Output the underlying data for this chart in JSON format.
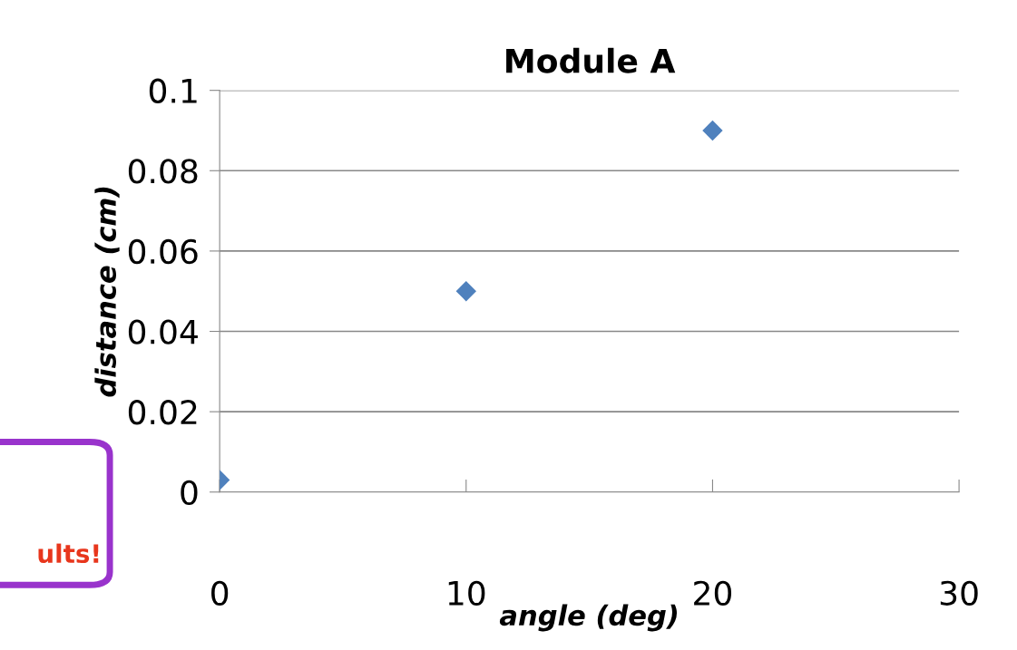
{
  "chart_data": {
    "type": "scatter",
    "title": "Module A",
    "xlabel": "angle (deg)",
    "ylabel": "distance (cm)",
    "x": [
      0,
      10,
      20
    ],
    "series": [
      {
        "color": "#4f81bd",
        "values": [
          0.003,
          0.05,
          0.09
        ]
      }
    ],
    "xlim": [
      0,
      30
    ],
    "xticks": [
      0,
      10,
      20,
      30
    ],
    "ylim": [
      0,
      0.1
    ],
    "yticks": [
      {
        "value": 0,
        "label": "0"
      },
      0.02,
      0.04,
      0.06,
      0.08,
      0.1
    ],
    "grid": "y",
    "marker": "diamond",
    "annotations": [
      "ults!"
    ]
  }
}
